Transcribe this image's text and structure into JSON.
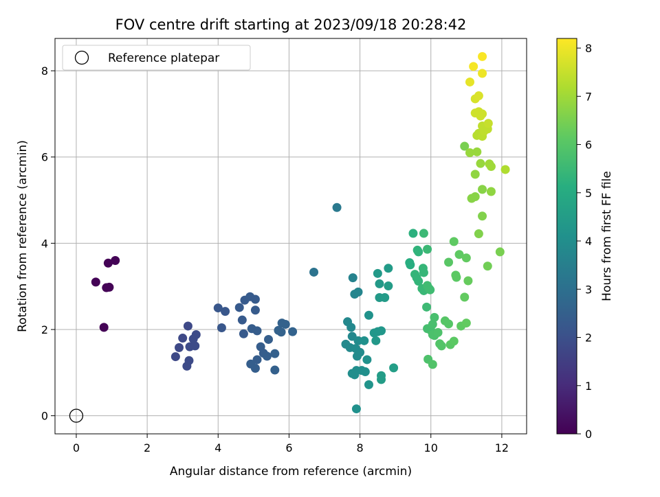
{
  "chart_data": {
    "type": "scatter",
    "title": "FOV centre drift starting at 2023/09/18 20:28:42",
    "xlabel": "Angular distance from reference (arcmin)",
    "ylabel": "Rotation from reference (arcmin)",
    "xlim": [
      -0.6,
      12.7
    ],
    "ylim": [
      -0.42,
      8.75
    ],
    "xticks": [
      "0",
      "2",
      "4",
      "6",
      "8",
      "10",
      "12"
    ],
    "yticks": [
      "0",
      "2",
      "4",
      "6",
      "8"
    ],
    "grid": true,
    "legend": {
      "placement": "top-left",
      "entries": [
        "Reference platepar"
      ]
    },
    "reference_point": {
      "x": 0,
      "y": 0
    },
    "colorbar": {
      "label": "Hours from first FF file",
      "range": [
        0,
        8.2
      ],
      "ticks": [
        "0",
        "1",
        "2",
        "3",
        "4",
        "5",
        "6",
        "7",
        "8"
      ],
      "colormap": "viridis"
    },
    "points": [
      {
        "x": 0.55,
        "y": 3.1,
        "c": 0.05
      },
      {
        "x": 0.85,
        "y": 2.97,
        "c": 0.05
      },
      {
        "x": 0.93,
        "y": 2.98,
        "c": 0.05
      },
      {
        "x": 0.9,
        "y": 3.54,
        "c": 0.05
      },
      {
        "x": 1.1,
        "y": 3.6,
        "c": 0.05
      },
      {
        "x": 0.78,
        "y": 2.05,
        "c": 0.05
      },
      {
        "x": 2.8,
        "y": 1.37,
        "c": 1.8
      },
      {
        "x": 2.9,
        "y": 1.58,
        "c": 1.8
      },
      {
        "x": 3.0,
        "y": 1.8,
        "c": 1.8
      },
      {
        "x": 3.15,
        "y": 2.08,
        "c": 1.8
      },
      {
        "x": 3.2,
        "y": 1.6,
        "c": 1.85
      },
      {
        "x": 3.3,
        "y": 1.78,
        "c": 1.85
      },
      {
        "x": 3.38,
        "y": 1.88,
        "c": 1.85
      },
      {
        "x": 3.35,
        "y": 1.62,
        "c": 1.85
      },
      {
        "x": 3.18,
        "y": 1.28,
        "c": 1.85
      },
      {
        "x": 3.12,
        "y": 1.15,
        "c": 1.85
      },
      {
        "x": 4.0,
        "y": 2.5,
        "c": 2.2
      },
      {
        "x": 4.2,
        "y": 2.42,
        "c": 2.2
      },
      {
        "x": 4.1,
        "y": 2.04,
        "c": 2.2
      },
      {
        "x": 4.6,
        "y": 2.51,
        "c": 2.3
      },
      {
        "x": 4.75,
        "y": 2.68,
        "c": 2.3
      },
      {
        "x": 4.68,
        "y": 2.22,
        "c": 2.3
      },
      {
        "x": 4.72,
        "y": 1.9,
        "c": 2.3
      },
      {
        "x": 4.9,
        "y": 2.76,
        "c": 2.35
      },
      {
        "x": 5.05,
        "y": 2.7,
        "c": 2.35
      },
      {
        "x": 5.05,
        "y": 2.45,
        "c": 2.35
      },
      {
        "x": 4.95,
        "y": 2.02,
        "c": 2.4
      },
      {
        "x": 5.1,
        "y": 1.97,
        "c": 2.4
      },
      {
        "x": 5.2,
        "y": 1.6,
        "c": 2.4
      },
      {
        "x": 5.28,
        "y": 1.45,
        "c": 2.4
      },
      {
        "x": 5.1,
        "y": 1.3,
        "c": 2.4
      },
      {
        "x": 5.38,
        "y": 1.38,
        "c": 2.45
      },
      {
        "x": 4.92,
        "y": 1.2,
        "c": 2.45
      },
      {
        "x": 5.05,
        "y": 1.1,
        "c": 2.45
      },
      {
        "x": 5.42,
        "y": 1.77,
        "c": 2.45
      },
      {
        "x": 5.6,
        "y": 1.44,
        "c": 2.5
      },
      {
        "x": 5.6,
        "y": 1.06,
        "c": 2.5
      },
      {
        "x": 5.7,
        "y": 1.98,
        "c": 2.55
      },
      {
        "x": 5.8,
        "y": 2.15,
        "c": 2.55
      },
      {
        "x": 5.9,
        "y": 2.12,
        "c": 2.55
      },
      {
        "x": 5.78,
        "y": 1.94,
        "c": 2.55
      },
      {
        "x": 6.1,
        "y": 1.95,
        "c": 2.6
      },
      {
        "x": 6.7,
        "y": 3.33,
        "c": 3.1
      },
      {
        "x": 7.35,
        "y": 4.83,
        "c": 3.3
      },
      {
        "x": 7.8,
        "y": 3.2,
        "c": 3.6
      },
      {
        "x": 7.85,
        "y": 2.82,
        "c": 3.7
      },
      {
        "x": 7.95,
        "y": 2.87,
        "c": 3.7
      },
      {
        "x": 7.65,
        "y": 2.18,
        "c": 3.8
      },
      {
        "x": 7.75,
        "y": 2.05,
        "c": 3.8
      },
      {
        "x": 7.78,
        "y": 1.84,
        "c": 3.8
      },
      {
        "x": 7.6,
        "y": 1.66,
        "c": 3.85
      },
      {
        "x": 7.72,
        "y": 1.58,
        "c": 3.85
      },
      {
        "x": 7.95,
        "y": 1.74,
        "c": 3.9
      },
      {
        "x": 7.88,
        "y": 1.56,
        "c": 3.9
      },
      {
        "x": 8.0,
        "y": 1.47,
        "c": 3.9
      },
      {
        "x": 7.92,
        "y": 1.38,
        "c": 3.9
      },
      {
        "x": 7.9,
        "y": 1.05,
        "c": 4.0
      },
      {
        "x": 7.78,
        "y": 0.98,
        "c": 4.0
      },
      {
        "x": 7.85,
        "y": 0.95,
        "c": 4.0
      },
      {
        "x": 8.05,
        "y": 1.05,
        "c": 4.0
      },
      {
        "x": 8.15,
        "y": 1.02,
        "c": 4.05
      },
      {
        "x": 7.9,
        "y": 0.16,
        "c": 4.1
      },
      {
        "x": 8.12,
        "y": 1.74,
        "c": 4.1
      },
      {
        "x": 8.2,
        "y": 1.3,
        "c": 4.1
      },
      {
        "x": 8.25,
        "y": 2.33,
        "c": 4.15
      },
      {
        "x": 8.25,
        "y": 0.72,
        "c": 4.2
      },
      {
        "x": 8.4,
        "y": 1.92,
        "c": 4.3
      },
      {
        "x": 8.5,
        "y": 1.95,
        "c": 4.3
      },
      {
        "x": 8.6,
        "y": 1.97,
        "c": 4.3
      },
      {
        "x": 8.45,
        "y": 1.74,
        "c": 4.35
      },
      {
        "x": 8.5,
        "y": 3.3,
        "c": 4.4
      },
      {
        "x": 8.55,
        "y": 3.06,
        "c": 4.4
      },
      {
        "x": 8.55,
        "y": 2.74,
        "c": 4.4
      },
      {
        "x": 8.7,
        "y": 2.74,
        "c": 4.45
      },
      {
        "x": 8.8,
        "y": 3.42,
        "c": 4.45
      },
      {
        "x": 8.8,
        "y": 3.01,
        "c": 4.5
      },
      {
        "x": 8.6,
        "y": 0.93,
        "c": 4.5
      },
      {
        "x": 8.6,
        "y": 0.84,
        "c": 4.5
      },
      {
        "x": 8.95,
        "y": 1.11,
        "c": 4.55
      },
      {
        "x": 9.4,
        "y": 3.55,
        "c": 5.1
      },
      {
        "x": 9.42,
        "y": 3.5,
        "c": 5.1
      },
      {
        "x": 9.5,
        "y": 4.23,
        "c": 5.2
      },
      {
        "x": 9.62,
        "y": 3.84,
        "c": 5.3
      },
      {
        "x": 9.65,
        "y": 3.8,
        "c": 5.3
      },
      {
        "x": 9.55,
        "y": 3.28,
        "c": 5.35
      },
      {
        "x": 9.6,
        "y": 3.2,
        "c": 5.35
      },
      {
        "x": 9.65,
        "y": 3.12,
        "c": 5.35
      },
      {
        "x": 9.78,
        "y": 3.42,
        "c": 5.4
      },
      {
        "x": 9.8,
        "y": 3.32,
        "c": 5.4
      },
      {
        "x": 9.75,
        "y": 2.95,
        "c": 5.45
      },
      {
        "x": 9.8,
        "y": 2.9,
        "c": 5.45
      },
      {
        "x": 9.8,
        "y": 4.23,
        "c": 5.5
      },
      {
        "x": 9.9,
        "y": 3.86,
        "c": 5.5
      },
      {
        "x": 9.88,
        "y": 2.52,
        "c": 5.55
      },
      {
        "x": 9.9,
        "y": 3.02,
        "c": 5.6
      },
      {
        "x": 9.95,
        "y": 2.95,
        "c": 5.6
      },
      {
        "x": 9.98,
        "y": 2.92,
        "c": 5.6
      },
      {
        "x": 9.9,
        "y": 2.02,
        "c": 5.7
      },
      {
        "x": 10.0,
        "y": 1.98,
        "c": 5.7
      },
      {
        "x": 10.05,
        "y": 2.12,
        "c": 5.75
      },
      {
        "x": 10.1,
        "y": 2.28,
        "c": 5.75
      },
      {
        "x": 10.05,
        "y": 1.88,
        "c": 5.8
      },
      {
        "x": 10.1,
        "y": 1.86,
        "c": 5.8
      },
      {
        "x": 10.2,
        "y": 1.93,
        "c": 5.85
      },
      {
        "x": 9.92,
        "y": 1.31,
        "c": 5.85
      },
      {
        "x": 10.05,
        "y": 1.19,
        "c": 5.9
      },
      {
        "x": 10.25,
        "y": 1.67,
        "c": 5.95
      },
      {
        "x": 10.3,
        "y": 1.62,
        "c": 5.95
      },
      {
        "x": 10.4,
        "y": 2.2,
        "c": 6.0
      },
      {
        "x": 10.5,
        "y": 2.13,
        "c": 6.0
      },
      {
        "x": 10.5,
        "y": 3.56,
        "c": 6.05
      },
      {
        "x": 10.55,
        "y": 1.65,
        "c": 6.05
      },
      {
        "x": 10.65,
        "y": 1.73,
        "c": 6.1
      },
      {
        "x": 10.7,
        "y": 3.26,
        "c": 6.1
      },
      {
        "x": 10.72,
        "y": 3.21,
        "c": 6.1
      },
      {
        "x": 10.85,
        "y": 2.08,
        "c": 6.15
      },
      {
        "x": 10.65,
        "y": 4.04,
        "c": 6.15
      },
      {
        "x": 10.8,
        "y": 3.74,
        "c": 6.15
      },
      {
        "x": 10.95,
        "y": 2.75,
        "c": 6.2
      },
      {
        "x": 11.0,
        "y": 2.15,
        "c": 6.2
      },
      {
        "x": 11.0,
        "y": 3.66,
        "c": 6.2
      },
      {
        "x": 11.05,
        "y": 3.13,
        "c": 6.25
      },
      {
        "x": 10.95,
        "y": 6.25,
        "c": 6.5
      },
      {
        "x": 11.15,
        "y": 5.04,
        "c": 6.7
      },
      {
        "x": 11.25,
        "y": 5.08,
        "c": 6.7
      },
      {
        "x": 11.1,
        "y": 6.1,
        "c": 6.9
      },
      {
        "x": 11.25,
        "y": 5.6,
        "c": 6.8
      },
      {
        "x": 11.35,
        "y": 4.22,
        "c": 6.6
      },
      {
        "x": 11.45,
        "y": 4.63,
        "c": 6.6
      },
      {
        "x": 11.45,
        "y": 5.25,
        "c": 6.7
      },
      {
        "x": 11.4,
        "y": 5.85,
        "c": 6.9
      },
      {
        "x": 11.3,
        "y": 6.12,
        "c": 6.9
      },
      {
        "x": 11.6,
        "y": 3.47,
        "c": 6.4
      },
      {
        "x": 11.7,
        "y": 5.2,
        "c": 6.8
      },
      {
        "x": 11.65,
        "y": 5.84,
        "c": 7.0
      },
      {
        "x": 11.7,
        "y": 5.78,
        "c": 7.0
      },
      {
        "x": 11.95,
        "y": 3.8,
        "c": 6.5
      },
      {
        "x": 12.1,
        "y": 5.71,
        "c": 7.2
      },
      {
        "x": 11.3,
        "y": 6.5,
        "c": 7.3
      },
      {
        "x": 11.35,
        "y": 6.55,
        "c": 7.3
      },
      {
        "x": 11.45,
        "y": 6.48,
        "c": 7.35
      },
      {
        "x": 11.5,
        "y": 6.6,
        "c": 7.4
      },
      {
        "x": 11.6,
        "y": 6.65,
        "c": 7.4
      },
      {
        "x": 11.45,
        "y": 6.72,
        "c": 7.4
      },
      {
        "x": 11.62,
        "y": 6.78,
        "c": 7.5
      },
      {
        "x": 11.25,
        "y": 7.02,
        "c": 7.6
      },
      {
        "x": 11.35,
        "y": 7.05,
        "c": 7.6
      },
      {
        "x": 11.45,
        "y": 7.0,
        "c": 7.6
      },
      {
        "x": 11.4,
        "y": 6.95,
        "c": 7.6
      },
      {
        "x": 11.25,
        "y": 7.35,
        "c": 7.7
      },
      {
        "x": 11.35,
        "y": 7.42,
        "c": 7.75
      },
      {
        "x": 11.1,
        "y": 7.74,
        "c": 7.9
      },
      {
        "x": 11.45,
        "y": 7.94,
        "c": 8.0
      },
      {
        "x": 11.2,
        "y": 8.1,
        "c": 8.1
      },
      {
        "x": 11.45,
        "y": 8.33,
        "c": 8.15
      }
    ]
  }
}
